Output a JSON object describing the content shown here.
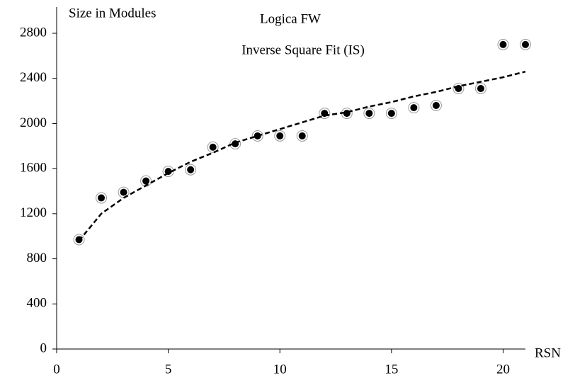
{
  "chart_data": {
    "type": "scatter",
    "title": "Logica FW",
    "subtitle": "Inverse Square Fit (IS)",
    "y_label": "Size in Modules",
    "x_label": "RSN",
    "x": [
      1,
      2,
      3,
      4,
      5,
      6,
      7,
      8,
      9,
      10,
      11,
      12,
      13,
      14,
      15,
      16,
      17,
      18,
      19,
      20,
      21
    ],
    "series": [
      {
        "color": "#000000",
        "style": "markers",
        "values": [
          970,
          1340,
          1390,
          1490,
          1575,
          1590,
          1790,
          1820,
          1890,
          1890,
          1890,
          2090,
          2090,
          2090,
          2090,
          2140,
          2160,
          2310,
          2310,
          2700,
          2700
        ]
      },
      {
        "color": "#000000",
        "style": "dashed",
        "values": [
          960,
          1200,
          1340,
          1450,
          1560,
          1660,
          1740,
          1830,
          1890,
          1950,
          2010,
          2070,
          2100,
          2150,
          2190,
          2240,
          2280,
          2330,
          2370,
          2410,
          2460
        ]
      }
    ],
    "xlim": [
      0,
      21
    ],
    "ylim": [
      0,
      2800
    ],
    "xticks": [
      0,
      5,
      10,
      15,
      20
    ],
    "yticks": [
      0,
      400,
      800,
      1200,
      1600,
      2000,
      2400,
      2800
    ]
  }
}
